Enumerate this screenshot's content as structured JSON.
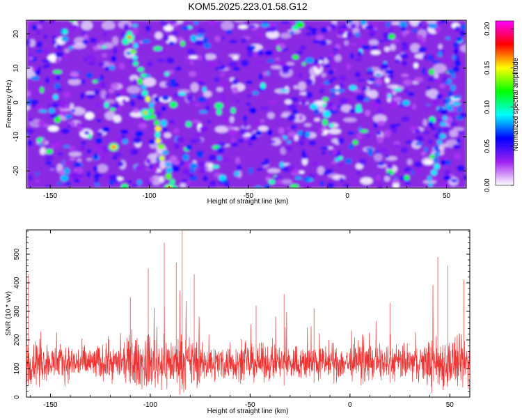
{
  "figure": {
    "title": "KOM5.2025.223.01.58.G12"
  },
  "chart_data": [
    {
      "type": "heatmap",
      "name": "spectrogram",
      "xlabel": "Height of straight line (km)",
      "ylabel": "Frequency (Hz)",
      "xlim": [
        -162,
        60
      ],
      "ylim": [
        -25,
        24
      ],
      "xticks": [
        -150,
        -100,
        -50,
        0,
        50
      ],
      "yticks": [
        -20,
        -10,
        0,
        10,
        20
      ],
      "colorbar": {
        "label": "Normalized spectral amplitude",
        "range": [
          0,
          0.21
        ],
        "ticks": [
          "0.00",
          "0.05",
          "0.10",
          "0.15",
          "0.20"
        ],
        "colors": [
          "#ffffff",
          "#a020f0",
          "#0000ff",
          "#00ffff",
          "#00ff00",
          "#ffff00",
          "#ff0000",
          "#ff00ff"
        ]
      },
      "blob_density": 0.9,
      "features": [
        {
          "desc": "diagonal bright ridge",
          "x_range": [
            -110,
            -88
          ],
          "y_range": [
            20,
            -25
          ],
          "amplitude": 0.17
        },
        {
          "desc": "right-edge ridge",
          "x_range": [
            42,
            58
          ],
          "y_range": [
            -24,
            22
          ],
          "amplitude": 0.1
        },
        {
          "desc": "hotspot",
          "x": -118,
          "y": -13,
          "amplitude": 0.19
        },
        {
          "desc": "hotspot",
          "x": -110,
          "y": 19,
          "amplitude": 0.17
        },
        {
          "desc": "hotspot",
          "x": -90,
          "y": -25,
          "amplitude": 0.18
        },
        {
          "desc": "hotspot",
          "x": -102,
          "y": -3,
          "amplitude": 0.16
        }
      ]
    },
    {
      "type": "line",
      "name": "snr",
      "xlabel": "Height of straight line (km)",
      "ylabel": "SNR (10 * v/v)",
      "xlim": [
        -162,
        60
      ],
      "ylim": [
        0,
        585
      ],
      "xticks": [
        -150,
        -100,
        -50,
        0,
        50
      ],
      "yticks": [
        0,
        100,
        200,
        300,
        400,
        500
      ],
      "color": "#ee3333",
      "baseline_mean": 120,
      "noise_spread": 90,
      "peaks": [
        {
          "x": -161,
          "y": 430
        },
        {
          "x": -110,
          "y": 350
        },
        {
          "x": -101,
          "y": 450
        },
        {
          "x": -93,
          "y": 540
        },
        {
          "x": -87,
          "y": 470
        },
        {
          "x": -84,
          "y": 585
        },
        {
          "x": -78,
          "y": 430
        },
        {
          "x": -47,
          "y": 320
        },
        {
          "x": -33,
          "y": 360
        },
        {
          "x": -18,
          "y": 310
        },
        {
          "x": 20,
          "y": 330
        },
        {
          "x": 44,
          "y": 490
        },
        {
          "x": 49,
          "y": 460
        },
        {
          "x": 57,
          "y": 410
        }
      ]
    }
  ]
}
